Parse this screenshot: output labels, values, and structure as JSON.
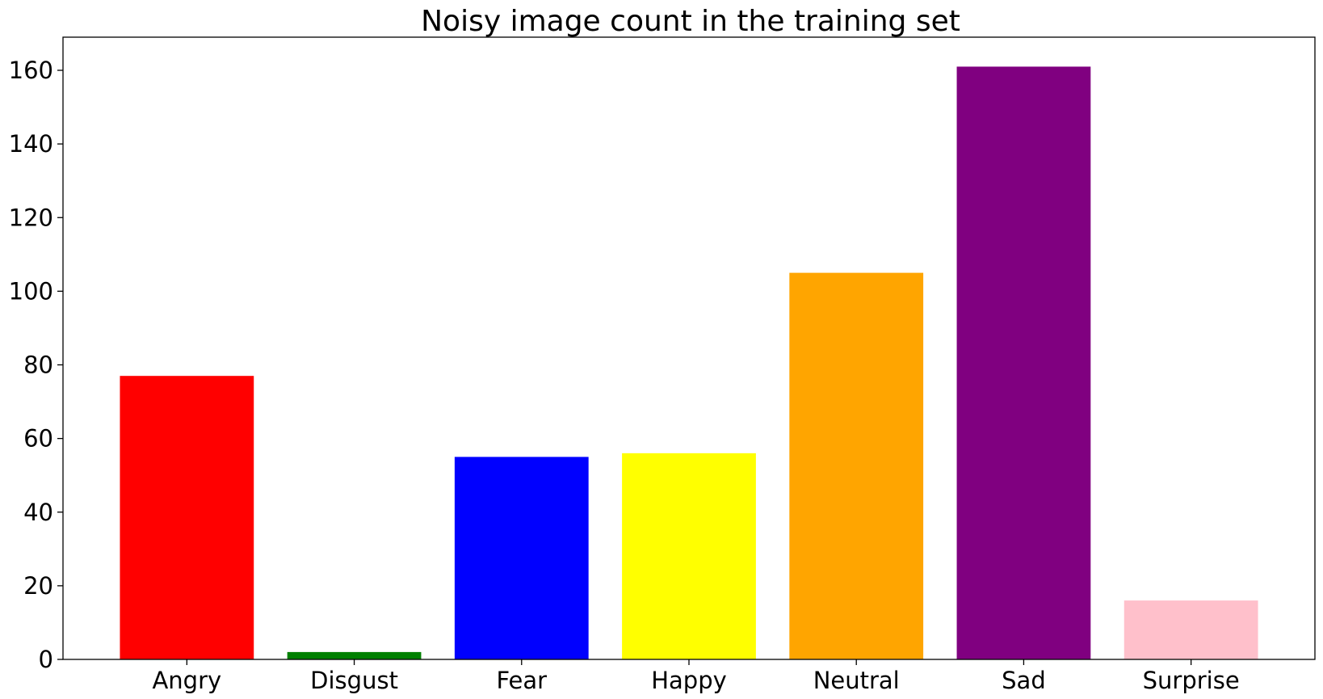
{
  "chart_data": {
    "type": "bar",
    "title": "Noisy image count in the training set",
    "xlabel": "",
    "ylabel": "",
    "categories": [
      "Angry",
      "Disgust",
      "Fear",
      "Happy",
      "Neutral",
      "Sad",
      "Surprise"
    ],
    "values": [
      77,
      2,
      55,
      56,
      105,
      161,
      16
    ],
    "colors": [
      "#ff0000",
      "#008000",
      "#0000ff",
      "#ffff00",
      "#ffa500",
      "#800080",
      "#ffc0cb"
    ],
    "ylim": [
      0,
      169
    ],
    "yticks": [
      0,
      20,
      40,
      60,
      80,
      100,
      120,
      140,
      160
    ],
    "grid": false,
    "legend": "none"
  }
}
